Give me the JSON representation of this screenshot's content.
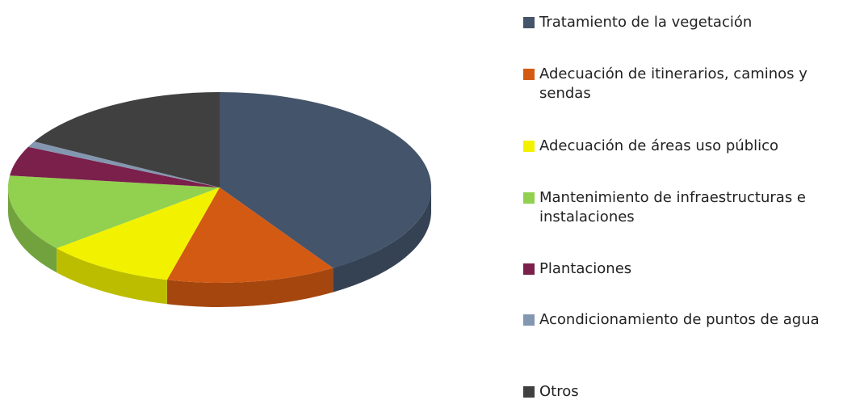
{
  "chart_data": {
    "type": "pie3d",
    "categories": [
      "Tratamiento de la vegetación",
      "Adecuación de itinerarios, caminos y sendas",
      "Adecuación de áreas uso público",
      "Mantenimiento de infraestructuras e instalaciones",
      "Plantaciones",
      "Acondicionamiento de puntos de agua",
      "Otros"
    ],
    "values": [
      41,
      13,
      10,
      13,
      5,
      1,
      17
    ],
    "colors": [
      "#44546a",
      "#d35a13",
      "#f2f200",
      "#92d050",
      "#7b1f4b",
      "#8497b0",
      "#404040"
    ]
  }
}
